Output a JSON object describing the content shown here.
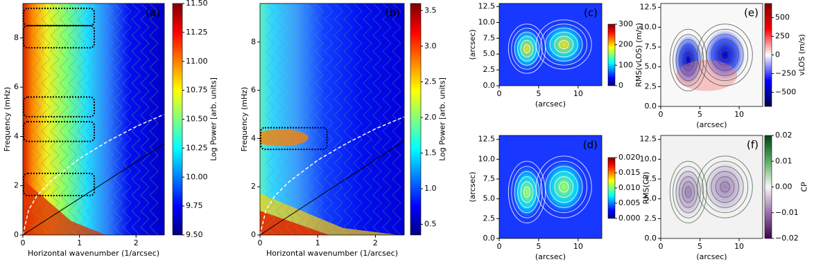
{
  "chart_data": [
    {
      "type": "heatmap",
      "panel_label": "(a)",
      "label_color": "#ffffff",
      "xlabel": "Horizontal wavenumber (1/arcsec)",
      "ylabel": "Frequency (mHz)",
      "xlim": [
        0,
        2.5
      ],
      "xticks": [
        0,
        1,
        2
      ],
      "ylim": [
        0,
        9.4
      ],
      "yticks": [
        0,
        2,
        4,
        6,
        8
      ],
      "colorbar": {
        "label": "Log Power [arb. units]",
        "lim": [
          9.5,
          11.5
        ],
        "ticks": [
          {
            "value": 9.5,
            "label": "9.50"
          },
          {
            "value": 9.75,
            "label": "9.75"
          },
          {
            "value": 10,
            "label": "10.00"
          },
          {
            "value": 10.25,
            "label": "10.25"
          },
          {
            "value": 10.5,
            "label": "10.50"
          },
          {
            "value": 10.75,
            "label": "10.75"
          },
          {
            "value": 11,
            "label": "11.00"
          },
          {
            "value": 11.25,
            "label": "11.25"
          },
          {
            "value": 11.5,
            "label": "11.50"
          }
        ],
        "colors": [
          "#00007f",
          "#0000ff",
          "#007fff",
          "#00ffff",
          "#7fff7f",
          "#ffff00",
          "#ff7f00",
          "#ff0000",
          "#7f0000"
        ]
      },
      "boxes": [
        {
          "x": [
            0,
            1.25
          ],
          "y": [
            8.5,
            9.2
          ]
        },
        {
          "x": [
            0,
            1.25
          ],
          "y": [
            7.6,
            8.5
          ]
        },
        {
          "x": [
            0,
            1.25
          ],
          "y": [
            4.8,
            5.6
          ]
        },
        {
          "x": [
            0,
            1.25
          ],
          "y": [
            3.8,
            4.6
          ]
        },
        {
          "x": [
            0,
            1.25
          ],
          "y": [
            1.6,
            2.5
          ]
        }
      ],
      "dashed_curve": {
        "x": [
          0,
          0.1,
          0.25,
          0.5,
          1,
          1.5,
          2,
          2.5
        ],
        "y": [
          0,
          1,
          1.6,
          2.2,
          3.1,
          3.8,
          4.4,
          4.9
        ]
      },
      "line": {
        "x": [
          0,
          2.5
        ],
        "y": [
          0,
          3.7
        ]
      }
    },
    {
      "type": "heatmap",
      "panel_label": "(b)",
      "label_color": "#ffffff",
      "xlabel": "Horizontal wavenumber (1/arcsec)",
      "ylabel": "Frequency (mHz)",
      "xlim": [
        0,
        2.5
      ],
      "xticks": [
        0,
        1,
        2
      ],
      "ylim": [
        0,
        9.6
      ],
      "yticks": [
        0,
        2,
        4,
        6,
        8
      ],
      "colorbar": {
        "label": "Log Power [arb. units]",
        "lim": [
          0.35,
          3.6
        ],
        "ticks": [
          0.5,
          {
            "value": 1,
            "label": "1.0"
          },
          1.5,
          {
            "value": 2,
            "label": "2.0"
          },
          2.5,
          {
            "value": 3,
            "label": "3.0"
          },
          3.5
        ],
        "colors": [
          "#00007f",
          "#0000ff",
          "#007fff",
          "#00ffff",
          "#7fff7f",
          "#ffff00",
          "#ff7f00",
          "#ff0000",
          "#7f0000"
        ]
      },
      "boxes": [
        {
          "x": [
            0,
            1.15
          ],
          "y": [
            3.55,
            4.45
          ]
        }
      ],
      "dashed_curve": {
        "x": [
          0,
          0.1,
          0.25,
          0.5,
          1,
          1.5,
          2,
          2.5
        ],
        "y": [
          0,
          1,
          1.6,
          2.2,
          3.1,
          3.8,
          4.4,
          4.9
        ]
      },
      "line": {
        "x": [
          0,
          2.5
        ],
        "y": [
          0,
          3.9
        ]
      }
    },
    {
      "type": "map",
      "panel_label": "(c)",
      "label_color": "#000000",
      "xlabel": "(arcsec)",
      "ylabel": "(arcsec)",
      "xlim": [
        0,
        13
      ],
      "xticks": [
        0,
        5,
        10
      ],
      "ylim": [
        0,
        13
      ],
      "yticks": [
        {
          "value": 0,
          "label": "0.0"
        },
        {
          "value": 2.5,
          "label": "2.5"
        },
        {
          "value": 5,
          "label": "5.0"
        },
        {
          "value": 7.5,
          "label": "7.5"
        },
        {
          "value": 10,
          "label": "10.0"
        },
        {
          "value": 12.5,
          "label": "12.5"
        }
      ],
      "colorbar": {
        "label": "RMS(vLOS) (m/s)",
        "lim": [
          0,
          300
        ],
        "ticks": [
          0,
          100,
          200,
          300
        ],
        "colors": [
          "#00007f",
          "#0000ff",
          "#007fff",
          "#00ffff",
          "#7fff7f",
          "#ffff00",
          "#ff7f00",
          "#ff0000",
          "#7f0000"
        ]
      }
    },
    {
      "type": "map",
      "panel_label": "(d)",
      "label_color": "#000000",
      "xlabel": "(arcsec)",
      "ylabel": "(arcsec)",
      "xlim": [
        0,
        13
      ],
      "xticks": [
        0,
        5,
        10
      ],
      "ylim": [
        0,
        13
      ],
      "yticks": [
        {
          "value": 0,
          "label": "0.0"
        },
        {
          "value": 2.5,
          "label": "2.5"
        },
        {
          "value": 5,
          "label": "5.0"
        },
        {
          "value": 7.5,
          "label": "7.5"
        },
        {
          "value": 10,
          "label": "10.0"
        },
        {
          "value": 12.5,
          "label": "12.5"
        }
      ],
      "colorbar": {
        "label": "RMS(CP)",
        "lim": [
          0,
          0.02
        ],
        "ticks": [
          {
            "value": 0,
            "label": "0.000"
          },
          {
            "value": 0.005,
            "label": "0.005"
          },
          {
            "value": 0.01,
            "label": "0.010"
          },
          {
            "value": 0.015,
            "label": "0.015"
          },
          {
            "value": 0.02,
            "label": "0.020"
          }
        ],
        "colors": [
          "#00007f",
          "#0000ff",
          "#007fff",
          "#00ffff",
          "#7fff7f",
          "#ffff00",
          "#ff7f00",
          "#ff0000",
          "#7f0000"
        ]
      }
    },
    {
      "type": "map",
      "panel_label": "(e)",
      "label_color": "#000000",
      "xlabel": "(arcsec)",
      "xlim": [
        0,
        13
      ],
      "xticks": [
        0,
        5,
        10
      ],
      "ylim": [
        0,
        13
      ],
      "yticks": [
        {
          "value": 0,
          "label": "0.0"
        },
        {
          "value": 2.5,
          "label": "2.5"
        },
        {
          "value": 5,
          "label": "5.0"
        },
        {
          "value": 7.5,
          "label": "7.5"
        },
        {
          "value": 10,
          "label": "10.0"
        },
        {
          "value": 12.5,
          "label": "12.5"
        }
      ],
      "colorbar": {
        "label": "vLOS (m/s)",
        "lim": [
          -690,
          690
        ],
        "ticks": [
          {
            "value": -500,
            "label": "−500"
          },
          {
            "value": -250,
            "label": "−250"
          },
          0,
          250,
          500
        ],
        "colors": [
          "#00004c",
          "#0000ff",
          "#ffffff",
          "#ff0000",
          "#7f0000"
        ]
      }
    },
    {
      "type": "map",
      "panel_label": "(f)",
      "label_color": "#000000",
      "xlabel": "(arcsec)",
      "xlim": [
        0,
        13
      ],
      "xticks": [
        0,
        5,
        10
      ],
      "ylim": [
        0,
        13
      ],
      "yticks": [
        {
          "value": 0,
          "label": "0.0"
        },
        {
          "value": 2.5,
          "label": "2.5"
        },
        {
          "value": 5,
          "label": "5.0"
        },
        {
          "value": 7.5,
          "label": "7.5"
        },
        {
          "value": 10,
          "label": "10.0"
        },
        {
          "value": 12.5,
          "label": "12.5"
        }
      ],
      "colorbar": {
        "label": "CP",
        "lim": [
          -0.02,
          0.02
        ],
        "ticks": [
          {
            "value": -0.02,
            "label": "−0.02"
          },
          {
            "value": -0.01,
            "label": "−0.01"
          },
          {
            "value": 0,
            "label": "0.00"
          },
          {
            "value": 0.01,
            "label": "0.01"
          },
          {
            "value": 0.02,
            "label": "0.02"
          }
        ],
        "colors": [
          "#40004b",
          "#9970ab",
          "#f7f7f7",
          "#5aae61",
          "#00441b"
        ]
      }
    }
  ]
}
